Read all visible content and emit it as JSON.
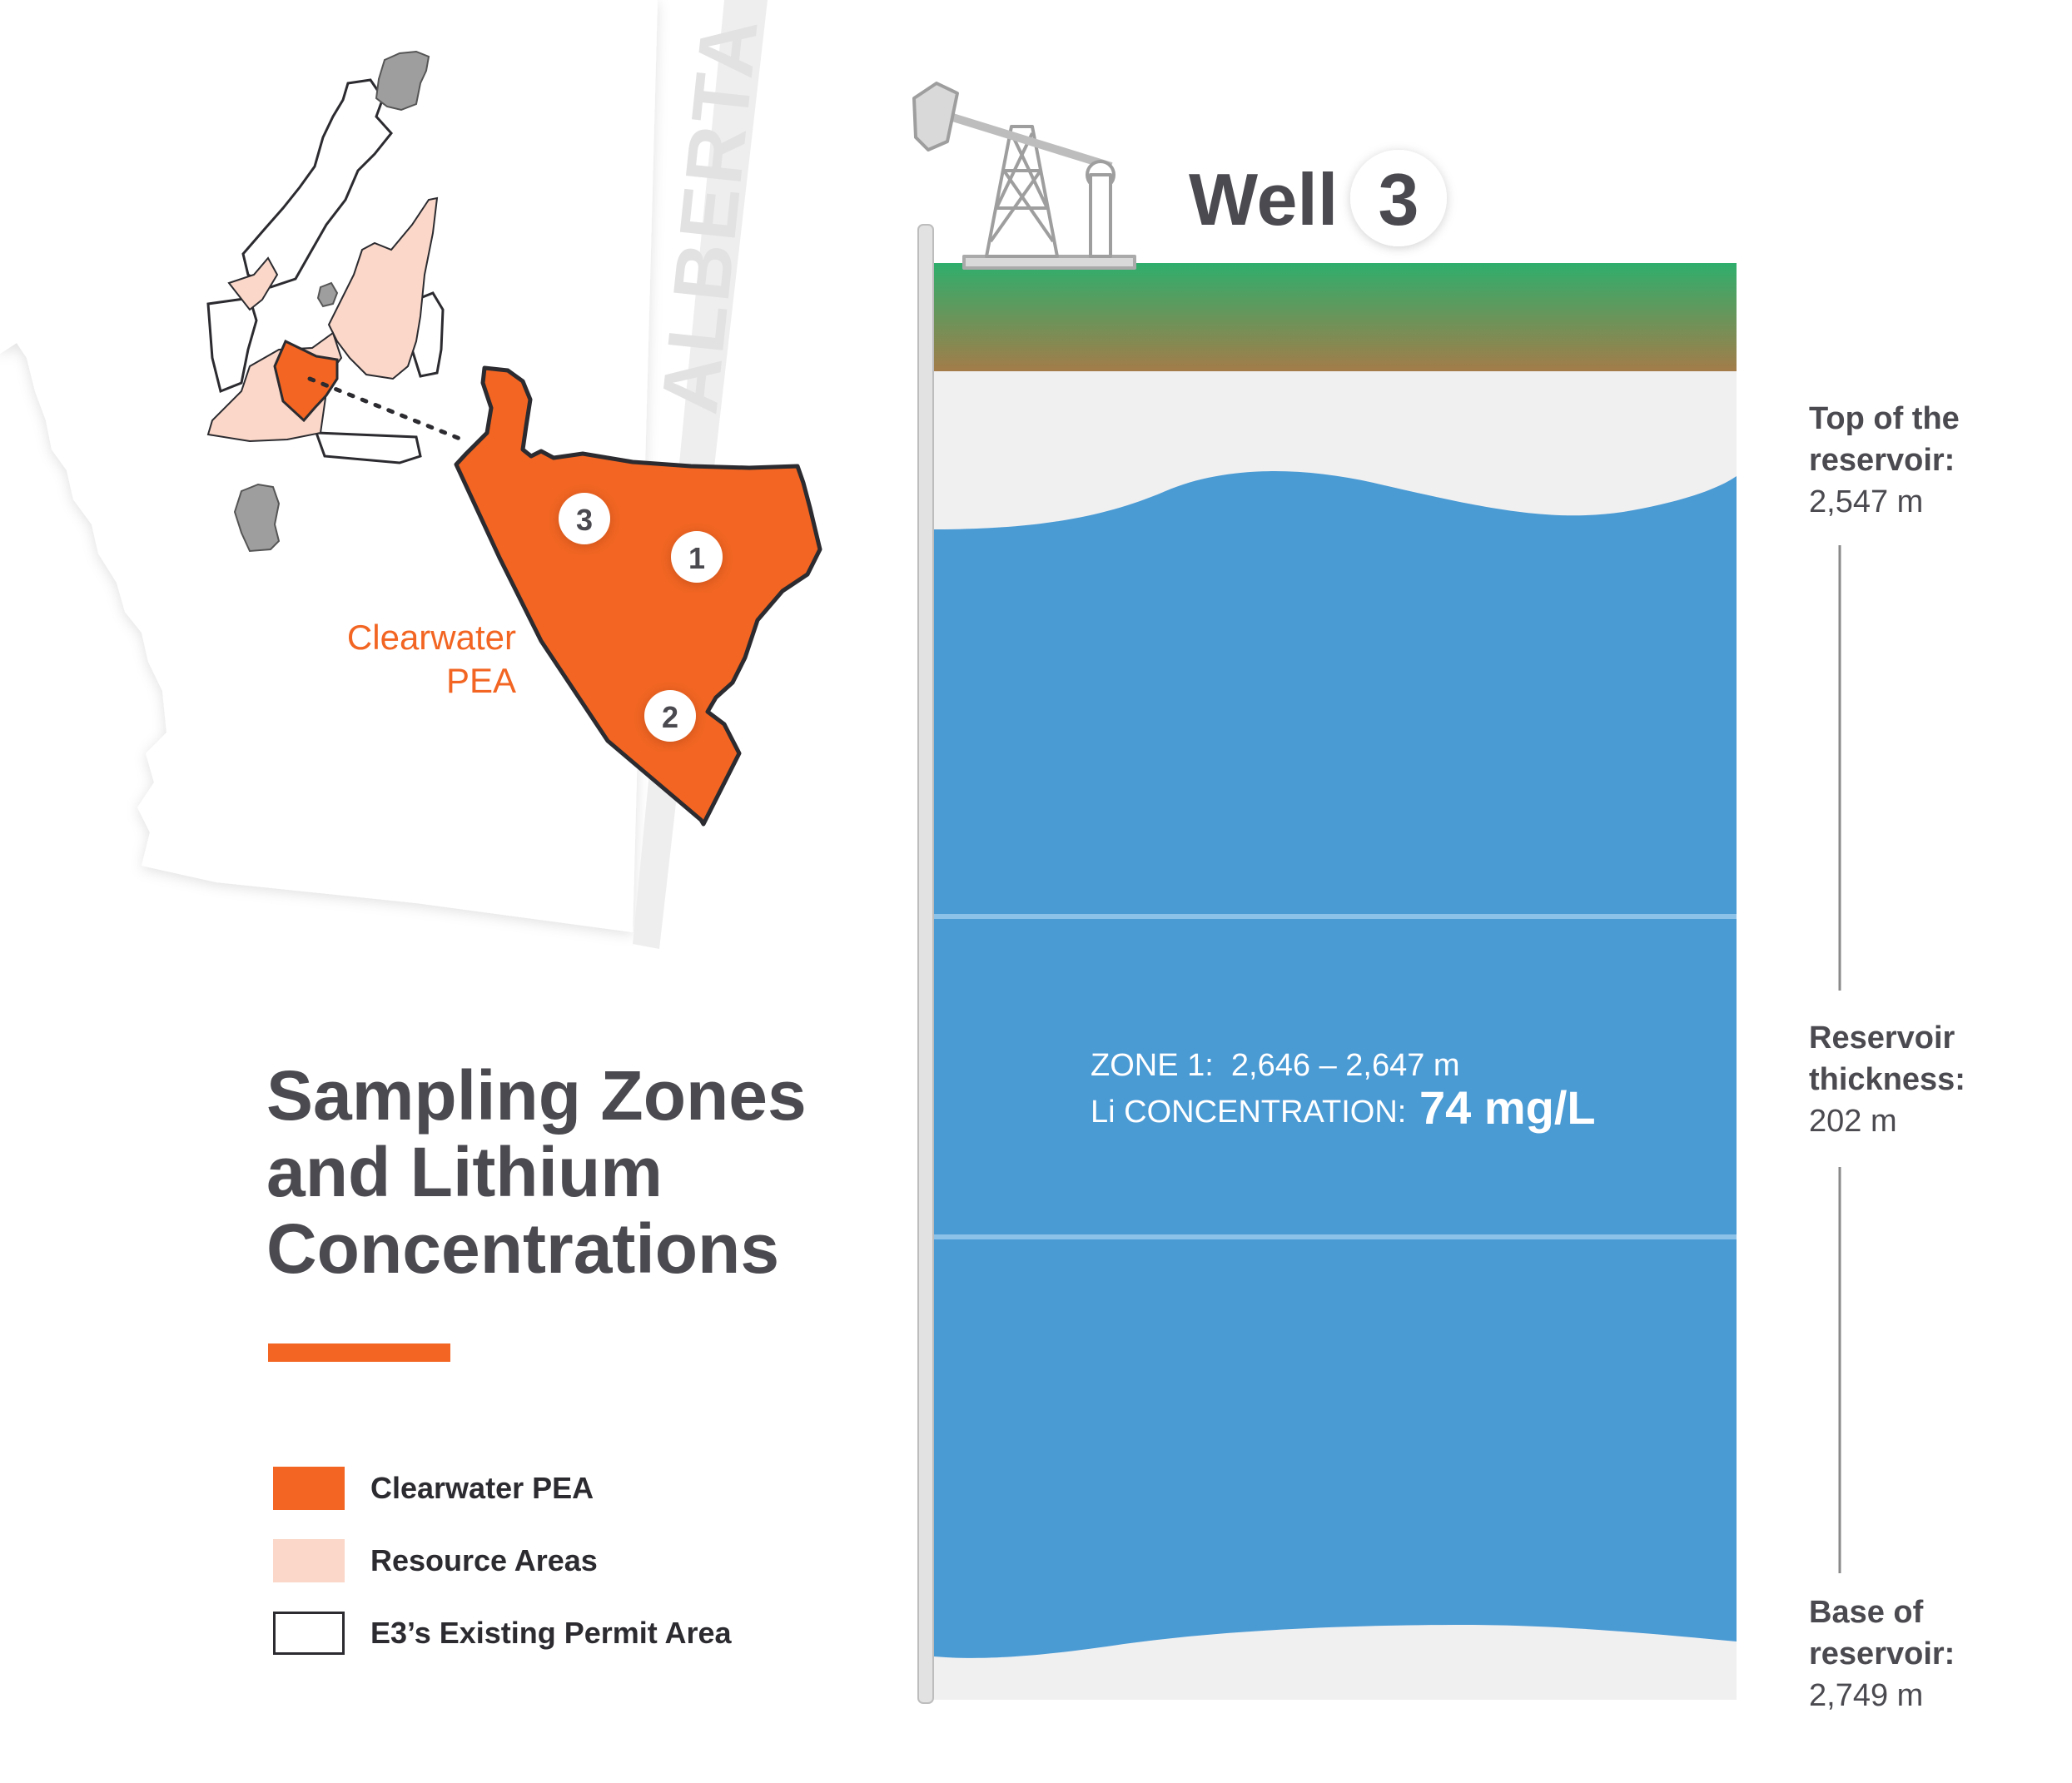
{
  "map": {
    "province_label": "ALBERTA",
    "pea_label_line1": "Clearwater",
    "pea_label_line2": "PEA",
    "well_markers": [
      "3",
      "1",
      "2"
    ]
  },
  "title": {
    "line1": "Sampling Zones",
    "line2": "and Lithium",
    "line3": "Concentrations"
  },
  "legend": [
    {
      "label": "Clearwater PEA",
      "color": "#f26522",
      "icon": "filled-square"
    },
    {
      "label": "Resource Areas",
      "color": "#fad7c8",
      "icon": "filled-square"
    },
    {
      "label": "E3’s Existing Permit Area",
      "color": "#ffffff",
      "icon": "outlined-square"
    }
  ],
  "well": {
    "label": "Well",
    "number": "3",
    "zone_line": "ZONE 1:  2,646 – 2,647 m",
    "conc_prefix": "Li CONCENTRATION:",
    "conc_value": "74 mg/L"
  },
  "depths": {
    "top_label_line1": "Top of the",
    "top_label_line2": "reservoir:",
    "top_value": "2,547 m",
    "thickness_label_line1": "Reservoir",
    "thickness_label_line2": "thickness:",
    "thickness_value": "202 m",
    "base_label_line1": "Base of",
    "base_label_line2": "reservoir:",
    "base_value": "2,749 m"
  },
  "colors": {
    "orange": "#f26522",
    "resource": "#fad7c8",
    "water": "#4a9ad4",
    "grass": "#3aaa6a",
    "soil": "#a07b4a",
    "rock": "#f0f0f0",
    "text_dark": "#4a4a50"
  }
}
